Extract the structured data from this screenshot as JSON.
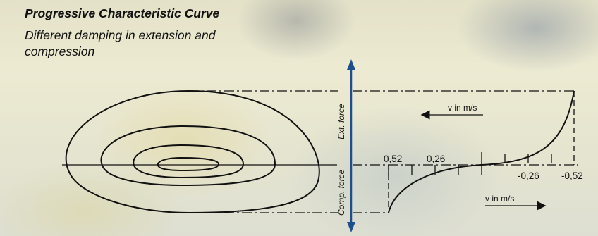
{
  "header": {
    "title": "Progressive Characteristic Curve",
    "subtitle": "Different damping in extension and compression"
  },
  "axis": {
    "top_label": "Ext. force",
    "bottom_label": "Comp. force",
    "velocity_label_top": "v in m/s",
    "velocity_label_bottom": "v in m/s"
  },
  "ticks": {
    "left_1": "0,52",
    "left_2": "0,26",
    "right_1": "-0,26",
    "right_2": "-0,52"
  },
  "colors": {
    "axis_arrow": "#1f4e8c",
    "line": "#111111"
  }
}
